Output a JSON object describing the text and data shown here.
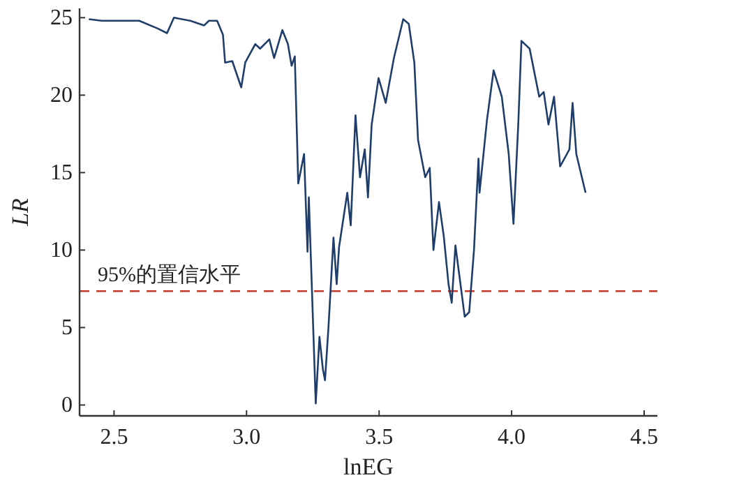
{
  "chart_data": {
    "type": "line",
    "xlabel": "lnEG",
    "ylabel": "LR",
    "xlim": [
      2.37,
      4.55
    ],
    "ylim": [
      -0.7,
      25.6
    ],
    "xticks": [
      {
        "value": 2.5,
        "label": "2.5"
      },
      {
        "value": 3.0,
        "label": "3.0"
      },
      {
        "value": 3.5,
        "label": "3.5"
      },
      {
        "value": 4.0,
        "label": "4.0"
      },
      {
        "value": 4.5,
        "label": "4.5"
      }
    ],
    "yticks": [
      0,
      5,
      10,
      15,
      20,
      25
    ],
    "grid": false,
    "ref_lines": [
      {
        "axis": "y",
        "value": 7.35,
        "label": "95%的置信水平",
        "color": "#c0392b",
        "line_style": "dashed"
      }
    ],
    "series": [
      {
        "color": "#1f3d6b",
        "x": [
          2.405,
          2.454,
          2.595,
          2.665,
          2.7,
          2.726,
          2.788,
          2.84,
          2.858,
          2.889,
          2.911,
          2.919,
          2.946,
          2.98,
          2.995,
          3.033,
          3.051,
          3.086,
          3.104,
          3.135,
          3.156,
          3.17,
          3.182,
          3.195,
          3.217,
          3.23,
          3.235,
          3.261,
          3.275,
          3.288,
          3.296,
          3.309,
          3.328,
          3.34,
          3.349,
          3.38,
          3.393,
          3.411,
          3.428,
          3.446,
          3.458,
          3.472,
          3.498,
          3.525,
          3.556,
          3.591,
          3.612,
          3.633,
          3.647,
          3.674,
          3.691,
          3.705,
          3.726,
          3.744,
          3.762,
          3.774,
          3.788,
          3.823,
          3.84,
          3.858,
          3.875,
          3.879,
          3.907,
          3.932,
          3.963,
          3.989,
          4.007,
          4.025,
          4.037,
          4.068,
          4.104,
          4.121,
          4.139,
          4.16,
          4.183,
          4.218,
          4.23,
          4.244,
          4.279
        ],
        "values": [
          24.9,
          24.8,
          24.8,
          24.3,
          24.0,
          25.0,
          24.8,
          24.5,
          24.8,
          24.8,
          23.9,
          22.1,
          22.2,
          20.5,
          22.1,
          23.3,
          23.0,
          23.6,
          22.4,
          24.2,
          23.3,
          21.9,
          22.5,
          14.3,
          16.2,
          9.9,
          13.4,
          0.1,
          4.4,
          2.3,
          1.6,
          5.0,
          10.8,
          7.8,
          10.2,
          13.7,
          11.6,
          18.7,
          14.7,
          16.5,
          13.4,
          18.1,
          21.1,
          19.5,
          22.4,
          24.9,
          24.6,
          22.1,
          17.1,
          14.7,
          15.3,
          10.0,
          13.1,
          10.9,
          7.8,
          6.6,
          10.3,
          5.7,
          6.0,
          10.0,
          15.9,
          13.7,
          18.4,
          21.6,
          19.9,
          16.2,
          11.7,
          18.1,
          23.5,
          23.0,
          19.9,
          20.2,
          18.1,
          19.9,
          15.4,
          16.5,
          19.5,
          16.2,
          13.7
        ]
      }
    ]
  }
}
